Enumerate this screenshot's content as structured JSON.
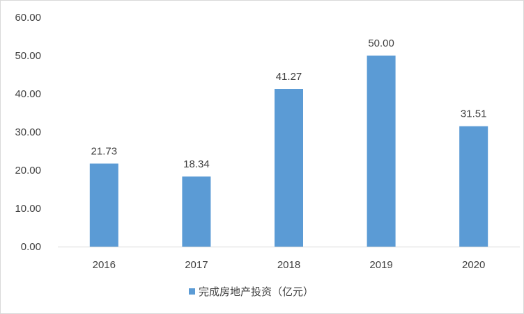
{
  "chart_data": {
    "type": "bar",
    "categories": [
      "2016",
      "2017",
      "2018",
      "2019",
      "2020"
    ],
    "series": [
      {
        "name": "完成房地产投资（亿元）",
        "values": [
          21.73,
          18.34,
          41.27,
          50.0,
          31.51
        ],
        "color": "#5b9bd5"
      }
    ],
    "data_labels": [
      "21.73",
      "18.34",
      "41.27",
      "50.00",
      "31.51"
    ],
    "yticks": [
      "0.00",
      "10.00",
      "20.00",
      "30.00",
      "40.00",
      "50.00",
      "60.00"
    ],
    "ylim": [
      0,
      60
    ],
    "grid": false,
    "legend_position": "bottom",
    "axis_color": "#d9d9d9",
    "text_color": "#404040"
  }
}
